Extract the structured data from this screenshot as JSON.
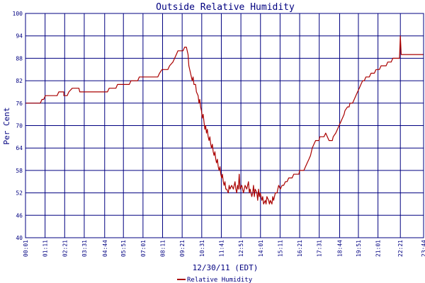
{
  "chart_data": {
    "type": "line",
    "title": "Outside Relative Humidity",
    "xlabel": "12/30/11 (EDT)",
    "ylabel": "Per Cent",
    "ylim": [
      40,
      100
    ],
    "yticks": [
      40,
      46,
      52,
      58,
      64,
      70,
      76,
      82,
      88,
      94,
      100
    ],
    "xlim": [
      0.0167,
      23.7333
    ],
    "xticks": [
      {
        "t": 0.0167,
        "label": "00:01"
      },
      {
        "t": 1.1833,
        "label": "01:11"
      },
      {
        "t": 2.35,
        "label": "02:21"
      },
      {
        "t": 3.5167,
        "label": "03:31"
      },
      {
        "t": 4.7333,
        "label": "04:44"
      },
      {
        "t": 5.85,
        "label": "05:51"
      },
      {
        "t": 7.0167,
        "label": "07:01"
      },
      {
        "t": 8.1833,
        "label": "08:11"
      },
      {
        "t": 9.35,
        "label": "09:21"
      },
      {
        "t": 10.5167,
        "label": "10:31"
      },
      {
        "t": 11.6833,
        "label": "11:41"
      },
      {
        "t": 12.85,
        "label": "12:51"
      },
      {
        "t": 14.0167,
        "label": "14:01"
      },
      {
        "t": 15.1833,
        "label": "15:11"
      },
      {
        "t": 16.35,
        "label": "16:21"
      },
      {
        "t": 17.5167,
        "label": "17:31"
      },
      {
        "t": 18.7333,
        "label": "18:44"
      },
      {
        "t": 19.85,
        "label": "19:51"
      },
      {
        "t": 21.0167,
        "label": "21:01"
      },
      {
        "t": 22.35,
        "label": "22:21"
      },
      {
        "t": 23.7333,
        "label": "23:44"
      }
    ],
    "grid": true,
    "legend_position": "bottom-center",
    "series": [
      {
        "name": "Relative Humidity",
        "color": "#aa0000",
        "points": [
          [
            0.0,
            76
          ],
          [
            0.9,
            76
          ],
          [
            1.0,
            77
          ],
          [
            1.1,
            77
          ],
          [
            1.2,
            78
          ],
          [
            1.9,
            78
          ],
          [
            2.0,
            79
          ],
          [
            2.3,
            79
          ],
          [
            2.3,
            78
          ],
          [
            2.5,
            78
          ],
          [
            2.6,
            79
          ],
          [
            2.8,
            80
          ],
          [
            3.2,
            80
          ],
          [
            3.25,
            79
          ],
          [
            4.9,
            79
          ],
          [
            5.0,
            80
          ],
          [
            5.4,
            80
          ],
          [
            5.5,
            81
          ],
          [
            6.2,
            81
          ],
          [
            6.3,
            82
          ],
          [
            6.7,
            82
          ],
          [
            6.8,
            83
          ],
          [
            7.5,
            83
          ],
          [
            7.9,
            83
          ],
          [
            8.0,
            84
          ],
          [
            8.15,
            85
          ],
          [
            8.5,
            85
          ],
          [
            8.6,
            86
          ],
          [
            8.8,
            87
          ],
          [
            8.9,
            88
          ],
          [
            9.0,
            89
          ],
          [
            9.1,
            90
          ],
          [
            9.4,
            90
          ],
          [
            9.5,
            91
          ],
          [
            9.6,
            91
          ],
          [
            9.65,
            90
          ],
          [
            9.7,
            89
          ],
          [
            9.75,
            86
          ],
          [
            9.85,
            84
          ],
          [
            9.95,
            82
          ],
          [
            10.0,
            83
          ],
          [
            10.05,
            81
          ],
          [
            10.15,
            81
          ],
          [
            10.2,
            79
          ],
          [
            10.3,
            78
          ],
          [
            10.35,
            76
          ],
          [
            10.4,
            77
          ],
          [
            10.45,
            75
          ],
          [
            10.5,
            74
          ],
          [
            10.55,
            72
          ],
          [
            10.6,
            73
          ],
          [
            10.65,
            71
          ],
          [
            10.7,
            69
          ],
          [
            10.75,
            70
          ],
          [
            10.8,
            68
          ],
          [
            10.85,
            69
          ],
          [
            10.9,
            67
          ],
          [
            10.95,
            66
          ],
          [
            11.0,
            67
          ],
          [
            11.05,
            65
          ],
          [
            11.1,
            64
          ],
          [
            11.15,
            65
          ],
          [
            11.2,
            63
          ],
          [
            11.25,
            62
          ],
          [
            11.3,
            63
          ],
          [
            11.35,
            61
          ],
          [
            11.4,
            60
          ],
          [
            11.45,
            61
          ],
          [
            11.5,
            59
          ],
          [
            11.55,
            58
          ],
          [
            11.6,
            59
          ],
          [
            11.65,
            57
          ],
          [
            11.7,
            56
          ],
          [
            11.75,
            57
          ],
          [
            11.8,
            55
          ],
          [
            11.85,
            54
          ],
          [
            11.9,
            55
          ],
          [
            11.95,
            53
          ],
          [
            12.0,
            53
          ],
          [
            12.1,
            52
          ],
          [
            12.15,
            54
          ],
          [
            12.2,
            53
          ],
          [
            12.3,
            54
          ],
          [
            12.4,
            53
          ],
          [
            12.5,
            55
          ],
          [
            12.55,
            53
          ],
          [
            12.6,
            52
          ],
          [
            12.65,
            54
          ],
          [
            12.7,
            53
          ],
          [
            12.75,
            57
          ],
          [
            12.8,
            53
          ],
          [
            12.9,
            54
          ],
          [
            13.0,
            52
          ],
          [
            13.1,
            54
          ],
          [
            13.2,
            53
          ],
          [
            13.3,
            55
          ],
          [
            13.35,
            52
          ],
          [
            13.4,
            53
          ],
          [
            13.5,
            51
          ],
          [
            13.55,
            52
          ],
          [
            13.6,
            54
          ],
          [
            13.65,
            51
          ],
          [
            13.7,
            53
          ],
          [
            13.8,
            52
          ],
          [
            13.85,
            50
          ],
          [
            13.9,
            53
          ],
          [
            13.95,
            51
          ],
          [
            14.0,
            52
          ],
          [
            14.1,
            50
          ],
          [
            14.15,
            51
          ],
          [
            14.2,
            49
          ],
          [
            14.3,
            50
          ],
          [
            14.35,
            49
          ],
          [
            14.4,
            51
          ],
          [
            14.5,
            50
          ],
          [
            14.55,
            49
          ],
          [
            14.6,
            50
          ],
          [
            14.7,
            49
          ],
          [
            14.75,
            51
          ],
          [
            14.8,
            50
          ],
          [
            14.85,
            51
          ],
          [
            14.9,
            52
          ],
          [
            15.0,
            52
          ],
          [
            15.05,
            53
          ],
          [
            15.1,
            54
          ],
          [
            15.2,
            53
          ],
          [
            15.3,
            54
          ],
          [
            15.4,
            54
          ],
          [
            15.5,
            55
          ],
          [
            15.6,
            55
          ],
          [
            15.7,
            56
          ],
          [
            15.9,
            56
          ],
          [
            16.0,
            57
          ],
          [
            16.3,
            57
          ],
          [
            16.35,
            58
          ],
          [
            16.6,
            58
          ],
          [
            16.7,
            59
          ],
          [
            16.8,
            60
          ],
          [
            16.9,
            61
          ],
          [
            17.0,
            62
          ],
          [
            17.1,
            64
          ],
          [
            17.2,
            65
          ],
          [
            17.3,
            66
          ],
          [
            17.5,
            66
          ],
          [
            17.55,
            67
          ],
          [
            17.8,
            67
          ],
          [
            17.9,
            68
          ],
          [
            18.0,
            67
          ],
          [
            18.1,
            66
          ],
          [
            18.3,
            66
          ],
          [
            18.35,
            67
          ],
          [
            18.5,
            68
          ],
          [
            18.6,
            69
          ],
          [
            18.7,
            70
          ],
          [
            18.8,
            71
          ],
          [
            18.9,
            72
          ],
          [
            19.0,
            73
          ],
          [
            19.05,
            74
          ],
          [
            19.2,
            75
          ],
          [
            19.3,
            75
          ],
          [
            19.35,
            76
          ],
          [
            19.5,
            76
          ],
          [
            19.6,
            77
          ],
          [
            19.7,
            78
          ],
          [
            19.8,
            79
          ],
          [
            19.9,
            80
          ],
          [
            20.0,
            81
          ],
          [
            20.1,
            82
          ],
          [
            20.2,
            82
          ],
          [
            20.3,
            83
          ],
          [
            20.5,
            83
          ],
          [
            20.6,
            84
          ],
          [
            20.8,
            84
          ],
          [
            20.9,
            85
          ],
          [
            21.1,
            85
          ],
          [
            21.2,
            86
          ],
          [
            21.5,
            86
          ],
          [
            21.6,
            87
          ],
          [
            21.8,
            87
          ],
          [
            21.9,
            88
          ],
          [
            22.3,
            88
          ],
          [
            22.35,
            94
          ],
          [
            22.4,
            89
          ],
          [
            23.73,
            89
          ]
        ]
      }
    ]
  }
}
